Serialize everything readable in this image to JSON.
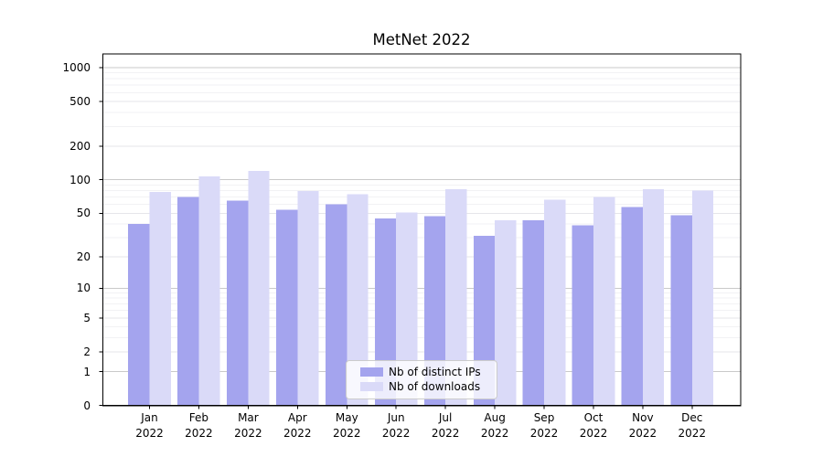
{
  "title": "MetNet 2022",
  "chart_data": {
    "type": "bar",
    "title": "MetNet 2022",
    "categories": [
      "Jan 2022",
      "Feb 2022",
      "Mar 2022",
      "Apr 2022",
      "May 2022",
      "Jun 2022",
      "Jul 2022",
      "Aug 2022",
      "Sep 2022",
      "Oct 2022",
      "Nov 2022",
      "Dec 2022"
    ],
    "series": [
      {
        "name": "Nb of distinct IPs",
        "color": "#a4a4ee",
        "values": [
          40,
          70,
          65,
          54,
          60,
          45,
          47,
          31,
          43,
          39,
          57,
          48
        ]
      },
      {
        "name": "Nb of downloads",
        "color": "#dadaf8",
        "values": [
          78,
          107,
          120,
          79,
          74,
          51,
          82,
          43,
          66,
          70,
          82,
          80
        ]
      }
    ],
    "xlabel": "",
    "ylabel": "",
    "yscale": "symlog",
    "y_ticks": [
      0,
      1,
      2,
      5,
      10,
      20,
      50,
      100,
      200,
      500,
      1000
    ],
    "ylim": [
      0,
      1325
    ],
    "grid": true,
    "legend_position": "inside lower center"
  },
  "colors": {
    "bar_dark": "#a4a4ee",
    "bar_light": "#dadaf8",
    "grid_decade": "#c9c9c9",
    "grid_labeled": "#e6e6ea",
    "grid_minor": "#f2f2f4",
    "axis": "#000000",
    "legend_border": "#cccccc"
  }
}
